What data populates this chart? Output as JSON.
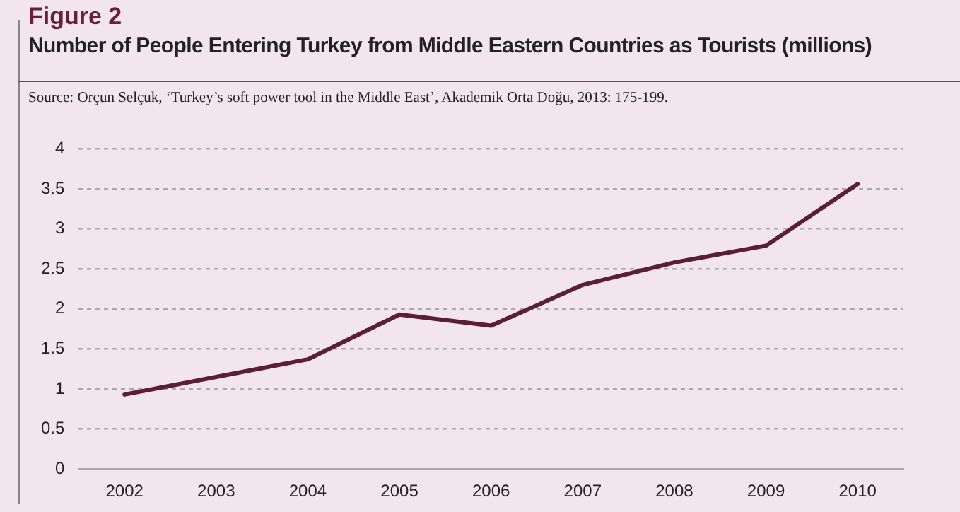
{
  "chart_data": {
    "type": "line",
    "title": "Figure 2",
    "subtitle": "Number of People Entering Turkey from Middle Eastern Countries as Tourists (millions)",
    "annotations": [
      "Source: Orçun Selçuk, ‘Turkey’s soft power tool in the Middle East’, Akademik Orta Doğu, 2013: 175-199."
    ],
    "categories": [
      "2002",
      "2003",
      "2004",
      "2005",
      "2006",
      "2007",
      "2008",
      "2009",
      "2010"
    ],
    "series": [
      {
        "color": "#5c1e33",
        "values": [
          0.93,
          1.15,
          1.37,
          1.93,
          1.79,
          2.3,
          2.58,
          2.79,
          3.56
        ]
      }
    ],
    "ylim": [
      0,
      4
    ],
    "yticks": [
      0,
      0.5,
      1,
      1.5,
      2,
      2.5,
      3,
      3.5,
      4
    ],
    "grid": "y",
    "legend": false,
    "marker": "none",
    "line_style": "solid"
  }
}
